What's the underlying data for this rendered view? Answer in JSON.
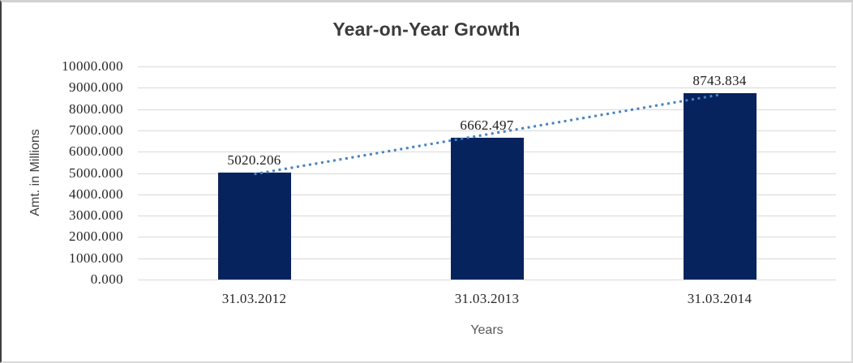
{
  "chart_data": {
    "type": "bar",
    "title": "Year-on-Year Growth",
    "categories": [
      "31.03.2012",
      "31.03.2013",
      "31.03.2014"
    ],
    "values": [
      5020.206,
      6662.497,
      8743.834
    ],
    "data_labels": [
      "5020.206",
      "6662.497",
      "8743.834"
    ],
    "xlabel": "Years",
    "ylabel": "Amt. in Millions",
    "ylim": [
      0,
      10000
    ],
    "y_tick_step": 1000,
    "y_tick_labels": [
      "10000.000",
      "9000.000",
      "8000.000",
      "7000.000",
      "6000.000",
      "5000.000",
      "4000.000",
      "3000.000",
      "2000.000",
      "1000.000",
      "0.000"
    ],
    "grid": true,
    "legend": "none",
    "trendline": {
      "kind": "linear",
      "style": "dotted",
      "endpoint_values": [
        4947.032,
        8670.66
      ]
    },
    "colors": {
      "bar": "#06235e",
      "trendline": "#4682be",
      "gridline": "#d9d9d9",
      "title_text": "#3b3b3b",
      "tick_text": "#262626",
      "axis_title_text": "#595959",
      "data_label_text": "#1a1a1a"
    }
  }
}
